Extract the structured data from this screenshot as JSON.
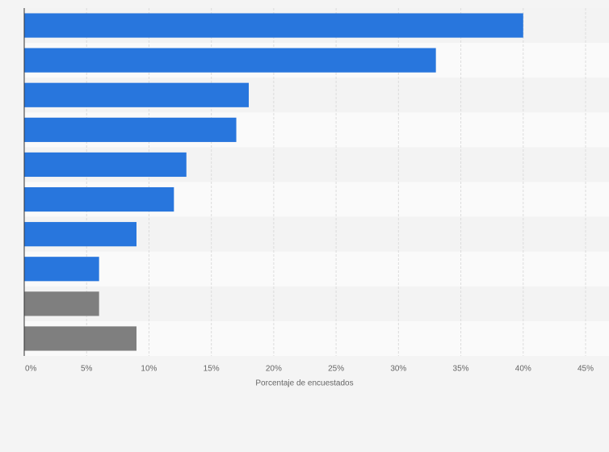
{
  "chart_data": {
    "type": "barh",
    "categories": [
      null,
      null,
      null,
      null,
      null,
      null,
      null,
      null,
      null,
      null
    ],
    "values": [
      40,
      33,
      18,
      17,
      13,
      12,
      9,
      6,
      6,
      9
    ],
    "colors": [
      "#2876dd",
      "#2876dd",
      "#2876dd",
      "#2876dd",
      "#2876dd",
      "#2876dd",
      "#2876dd",
      "#2876dd",
      "#7f7f7f",
      "#7f7f7f"
    ],
    "xlim": [
      0,
      45
    ],
    "xticks": [
      {
        "value": 0,
        "label": "0%"
      },
      {
        "value": 5,
        "label": "5%"
      },
      {
        "value": 10,
        "label": "10%"
      },
      {
        "value": 15,
        "label": "15%"
      },
      {
        "value": 20,
        "label": "20%"
      },
      {
        "value": 25,
        "label": "25%"
      },
      {
        "value": 30,
        "label": "30%"
      },
      {
        "value": 35,
        "label": "35%"
      },
      {
        "value": 40,
        "label": "40%"
      },
      {
        "value": 45,
        "label": "45%"
      }
    ],
    "xlabel": "Porcentaje de encuestados",
    "grid": true
  }
}
